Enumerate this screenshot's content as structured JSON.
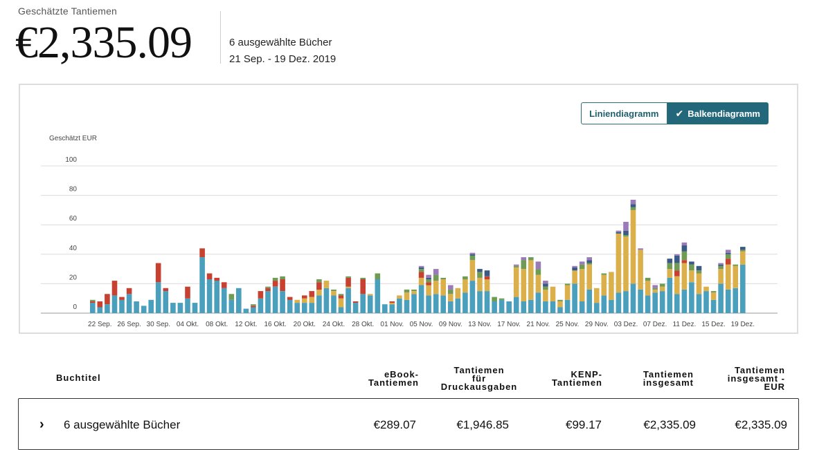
{
  "header": {
    "label": "Geschätzte Tantiemen",
    "amount": "€2,335.09",
    "books_selected": "6 ausgewählte Bücher",
    "date_range": "21 Sep. - 19 Dez. 2019"
  },
  "chart_toggle": {
    "line_label": "Liniendiagramm",
    "bar_label": "Balkendiagramm",
    "active": "bar"
  },
  "colors": {
    "ebook": "#4a9fbc",
    "print": "#dbb04b",
    "kenp": "#c8402f",
    "green": "#6f9b55",
    "navy": "#3a5a85",
    "purple": "#9b7ab8",
    "accent": "#23687a"
  },
  "chart_data": {
    "type": "bar",
    "stacked": true,
    "ylabel": "Geschätzt EUR",
    "ylim": [
      0,
      100
    ],
    "yticks": [
      0,
      20,
      40,
      60,
      80,
      100
    ],
    "grid": true,
    "x_tick_labels": [
      "22 Sep.",
      "26 Sep.",
      "30 Sep.",
      "04 Okt.",
      "08 Okt.",
      "12 Okt.",
      "16 Okt.",
      "20 Okt.",
      "24 Okt.",
      "28 Okt.",
      "01 Nov.",
      "05 Nov.",
      "09 Nov.",
      "13 Nov.",
      "17 Nov.",
      "21 Nov.",
      "25 Nov.",
      "29 Nov.",
      "03 Dez.",
      "07 Dez.",
      "11 Dez.",
      "15 Dez.",
      "19 Dez."
    ],
    "x_tick_start_index": 1,
    "x_tick_every": 4,
    "categories": [
      "21 Sep.",
      "22 Sep.",
      "23 Sep.",
      "24 Sep.",
      "25 Sep.",
      "26 Sep.",
      "27 Sep.",
      "28 Sep.",
      "29 Sep.",
      "30 Sep.",
      "01 Okt.",
      "02 Okt.",
      "03 Okt.",
      "04 Okt.",
      "05 Okt.",
      "06 Okt.",
      "07 Okt.",
      "08 Okt.",
      "09 Okt.",
      "10 Okt.",
      "11 Okt.",
      "12 Okt.",
      "13 Okt.",
      "14 Okt.",
      "15 Okt.",
      "16 Okt.",
      "17 Okt.",
      "18 Okt.",
      "19 Okt.",
      "20 Okt.",
      "21 Okt.",
      "22 Okt.",
      "23 Okt.",
      "24 Okt.",
      "25 Okt.",
      "26 Okt.",
      "27 Okt.",
      "28 Okt.",
      "29 Okt.",
      "30 Okt.",
      "31 Okt.",
      "01 Nov.",
      "02 Nov.",
      "03 Nov.",
      "04 Nov.",
      "05 Nov.",
      "06 Nov.",
      "07 Nov.",
      "08 Nov.",
      "09 Nov.",
      "10 Nov.",
      "11 Nov.",
      "12 Nov.",
      "13 Nov.",
      "14 Nov.",
      "15 Nov.",
      "16 Nov.",
      "17 Nov.",
      "18 Nov.",
      "19 Nov.",
      "20 Nov.",
      "21 Nov.",
      "22 Nov.",
      "23 Nov.",
      "24 Nov.",
      "25 Nov.",
      "26 Nov.",
      "27 Nov.",
      "28 Nov.",
      "29 Nov.",
      "30 Nov.",
      "01 Dez.",
      "02 Dez.",
      "03 Dez.",
      "04 Dez.",
      "05 Dez.",
      "06 Dez.",
      "07 Dez.",
      "08 Dez.",
      "09 Dez.",
      "10 Dez.",
      "11 Dez.",
      "12 Dez.",
      "13 Dez.",
      "14 Dez.",
      "15 Dez.",
      "16 Dez.",
      "17 Dez.",
      "18 Dez.",
      "19 Dez."
    ],
    "series": [
      {
        "color": "#4a9fbc",
        "values": [
          7,
          4,
          6,
          12,
          9,
          13,
          8,
          5,
          9,
          21,
          15,
          7,
          7,
          10,
          7,
          38,
          23,
          22,
          17,
          9,
          17,
          3,
          4,
          10,
          15,
          18,
          15,
          9,
          7,
          7,
          7,
          12,
          17,
          12,
          4,
          17,
          7,
          13,
          12,
          23,
          6,
          6,
          10,
          9,
          13,
          19,
          12,
          13,
          12,
          8,
          10,
          14,
          22,
          15,
          15,
          8,
          9,
          8,
          11,
          8,
          9,
          14,
          8,
          8,
          4,
          9,
          20,
          8,
          16,
          7,
          12,
          9,
          14,
          15,
          20,
          16,
          12,
          14,
          15,
          24,
          13,
          16,
          21,
          13,
          15,
          9,
          20,
          16,
          17,
          33
        ]
      },
      {
        "color": "#dbb04b",
        "values": [
          0,
          0,
          0,
          0,
          0,
          0,
          0,
          0,
          0,
          0,
          0,
          0,
          0,
          0,
          0,
          0,
          0,
          0,
          0,
          0,
          0,
          0,
          0,
          0,
          0,
          0,
          0,
          0,
          2,
          3,
          4,
          4,
          5,
          3,
          6,
          1,
          0,
          0,
          1,
          0,
          0,
          1,
          2,
          5,
          2,
          5,
          7,
          9,
          11,
          5,
          7,
          9,
          14,
          9,
          8,
          0,
          0,
          0,
          20,
          22,
          27,
          12,
          8,
          10,
          4,
          10,
          9,
          22,
          17,
          10,
          14,
          19,
          40,
          37,
          50,
          27,
          10,
          2,
          3,
          6,
          12,
          18,
          8,
          14,
          3,
          5,
          10,
          17,
          15,
          9
        ]
      },
      {
        "color": "#c8402f",
        "values": [
          1,
          4,
          7,
          10,
          2,
          4,
          0,
          0,
          0,
          13,
          2,
          0,
          0,
          8,
          0,
          6,
          4,
          2,
          4,
          0,
          0,
          0,
          1,
          5,
          2,
          4,
          8,
          2,
          0,
          2,
          4,
          5,
          0,
          0,
          2,
          6,
          1,
          10,
          0,
          0,
          0,
          1,
          0,
          0,
          0,
          4,
          2,
          0,
          0,
          0,
          0,
          0,
          0,
          0,
          2,
          0,
          0,
          0,
          0,
          0,
          0,
          0,
          0,
          0,
          0,
          0,
          0,
          0,
          0,
          0,
          0,
          0,
          0,
          0,
          0,
          0,
          0,
          0,
          0,
          0,
          4,
          2,
          0,
          0,
          0,
          0,
          0,
          4,
          0,
          0
        ]
      },
      {
        "color": "#6f9b55",
        "values": [
          1,
          0,
          0,
          0,
          0,
          0,
          0,
          0,
          0,
          0,
          0,
          0,
          0,
          0,
          0,
          0,
          0,
          0,
          0,
          4,
          0,
          0,
          1,
          0,
          1,
          2,
          2,
          0,
          0,
          0,
          0,
          2,
          0,
          1,
          1,
          1,
          0,
          1,
          0,
          4,
          0,
          0,
          0,
          2,
          1,
          2,
          2,
          4,
          1,
          3,
          0,
          2,
          3,
          4,
          0,
          3,
          1,
          0,
          1,
          6,
          2,
          4,
          2,
          0,
          1,
          1,
          0,
          3,
          1,
          0,
          1,
          0,
          0,
          1,
          2,
          0,
          2,
          1,
          2,
          4,
          5,
          6,
          4,
          2,
          0,
          1,
          2,
          3,
          1,
          1
        ]
      },
      {
        "color": "#3a5a85",
        "values": [
          0,
          0,
          0,
          0,
          0,
          0,
          0,
          0,
          0,
          0,
          0,
          0,
          0,
          0,
          0,
          0,
          0,
          0,
          0,
          0,
          0,
          0,
          0,
          0,
          0,
          0,
          0,
          0,
          0,
          0,
          0,
          0,
          0,
          0,
          0,
          0,
          0,
          0,
          0,
          0,
          0,
          0,
          0,
          0,
          0,
          1,
          1,
          0,
          0,
          0,
          0,
          0,
          1,
          2,
          4,
          0,
          0,
          0,
          0,
          0,
          0,
          0,
          2,
          0,
          0,
          0,
          2,
          0,
          2,
          0,
          0,
          0,
          1,
          3,
          2,
          0,
          0,
          0,
          0,
          3,
          5,
          4,
          2,
          3,
          0,
          0,
          1,
          1,
          0,
          2
        ]
      },
      {
        "color": "#9b7ab8",
        "values": [
          0,
          0,
          0,
          0,
          0,
          0,
          0,
          0,
          0,
          0,
          0,
          0,
          0,
          0,
          0,
          0,
          0,
          0,
          0,
          0,
          0,
          0,
          0,
          0,
          0,
          0,
          0,
          0,
          0,
          0,
          0,
          0,
          0,
          0,
          0,
          0,
          0,
          0,
          0,
          0,
          0,
          0,
          0,
          0,
          0,
          1,
          2,
          4,
          0,
          3,
          0,
          0,
          1,
          0,
          0,
          0,
          0,
          0,
          1,
          2,
          0,
          5,
          2,
          0,
          0,
          0,
          1,
          2,
          2,
          0,
          0,
          0,
          1,
          6,
          3,
          1,
          0,
          2,
          0,
          0,
          1,
          2,
          0,
          0,
          0,
          0,
          1,
          2,
          0,
          0
        ]
      }
    ]
  },
  "table": {
    "headers": {
      "title": "Buchtitel",
      "ebook": [
        "eBook-",
        "Tantiemen"
      ],
      "print": [
        "Tantiemen",
        "für",
        "Druckausgaben"
      ],
      "kenp": [
        "KENP-",
        "Tantiemen"
      ],
      "total": [
        "Tantiemen",
        "insgesamt"
      ],
      "total_eur": [
        "Tantiemen",
        "insgesamt -",
        "EUR"
      ]
    },
    "row": {
      "title": "6 ausgewählte Bücher",
      "ebook": "€289.07",
      "print": "€1,946.85",
      "kenp": "€99.17",
      "total": "€2,335.09",
      "total_eur": "€2,335.09"
    }
  }
}
